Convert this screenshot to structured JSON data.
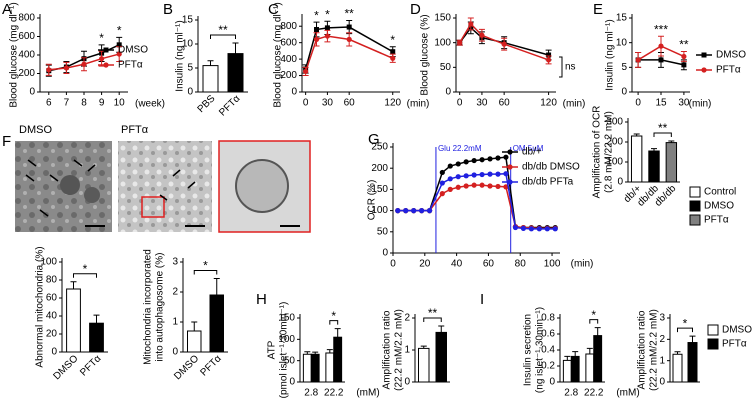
{
  "micrographs": {
    "panel": "F",
    "labels": [
      "DMSO",
      "PFTα"
    ]
  },
  "chart_data": [
    {
      "type": "line",
      "panel": "A",
      "ylabel": [
        "Blood glucose (mg dl⁻¹)"
      ],
      "xlabel": "(week)",
      "x": [
        6,
        7,
        8,
        9,
        10
      ],
      "xlim": [
        5.5,
        10.5
      ],
      "xticks": [
        6,
        7,
        8,
        9,
        10
      ],
      "ylim": [
        0,
        800
      ],
      "yticks": [
        0,
        200,
        400,
        600,
        800
      ],
      "series": [
        {
          "name": "DMSO",
          "color": "#000000",
          "marker": "square",
          "values": [
            230,
            270,
            360,
            420,
            510
          ],
          "errors": [
            60,
            60,
            80,
            90,
            80
          ]
        },
        {
          "name": "PFTα",
          "color": "#d42020",
          "marker": "circle",
          "values": [
            240,
            260,
            300,
            360,
            410
          ],
          "errors": [
            60,
            60,
            70,
            80,
            80
          ]
        }
      ],
      "significance": [
        null,
        null,
        null,
        "*",
        "*"
      ],
      "legend": true
    },
    {
      "type": "bar",
      "panel": "B",
      "ylabel": [
        "Insulin (ng ml⁻¹)"
      ],
      "categories": [
        "PBS",
        "PFTα"
      ],
      "values": [
        5.5,
        8
      ],
      "errors": [
        1,
        2.2
      ],
      "colors": [
        "#ffffff",
        "#000000"
      ],
      "ylim": [
        0,
        15
      ],
      "yticks": [
        0,
        5,
        10,
        15
      ],
      "significance": "**",
      "rotate_labels": true
    },
    {
      "type": "line",
      "panel": "C",
      "ylabel": [
        "Blood glucose (mg dl⁻¹)"
      ],
      "xlabel": "(min)",
      "x": [
        0,
        15,
        30,
        60,
        120
      ],
      "xlim": [
        -5,
        130
      ],
      "xticks": [
        0,
        30,
        60,
        120
      ],
      "ylim": [
        0,
        900
      ],
      "yticks": [
        0,
        200,
        400,
        600,
        800
      ],
      "series": [
        {
          "color": "#000000",
          "marker": "square",
          "values": [
            280,
            760,
            780,
            790,
            490
          ],
          "errors": [
            50,
            90,
            80,
            80,
            60
          ]
        },
        {
          "color": "#d42020",
          "marker": "circle",
          "values": [
            250,
            640,
            680,
            640,
            410
          ],
          "errors": [
            50,
            80,
            70,
            80,
            50
          ]
        }
      ],
      "significance": [
        null,
        "*",
        "*",
        "**",
        "*"
      ]
    },
    {
      "type": "line",
      "panel": "D",
      "ylabel": [
        "Blood glucose (%)"
      ],
      "xlabel": "(min)",
      "x": [
        0,
        15,
        30,
        60,
        120
      ],
      "xlim": [
        -5,
        130
      ],
      "xticks": [
        0,
        30,
        60,
        120
      ],
      "ylim": [
        0,
        150
      ],
      "yticks": [
        0,
        50,
        100,
        150
      ],
      "series": [
        {
          "color": "#000000",
          "marker": "square",
          "values": [
            100,
            130,
            110,
            100,
            75
          ],
          "errors": [
            5,
            12,
            12,
            12,
            10
          ]
        },
        {
          "color": "#d42020",
          "marker": "circle",
          "values": [
            100,
            138,
            115,
            97,
            65
          ],
          "errors": [
            5,
            12,
            12,
            12,
            8
          ]
        }
      ],
      "annotation": "ns"
    },
    {
      "type": "line",
      "panel": "E",
      "ylabel": [
        "Insulin (ng ml⁻¹)"
      ],
      "xlabel": "(min)",
      "x": [
        0,
        15,
        30
      ],
      "xlim": [
        -4,
        34
      ],
      "xticks": [
        0,
        15,
        30
      ],
      "ylim": [
        0,
        15
      ],
      "yticks": [
        0,
        5,
        10,
        15
      ],
      "series": [
        {
          "name": "DMSO",
          "color": "#000000",
          "marker": "square",
          "values": [
            6.5,
            6.5,
            5.5
          ],
          "errors": [
            1.5,
            1.5,
            1
          ]
        },
        {
          "name": "PFTα",
          "color": "#d42020",
          "marker": "circle",
          "values": [
            6.5,
            9.3,
            7.2
          ],
          "errors": [
            1.5,
            2,
            1
          ]
        }
      ],
      "significance": [
        null,
        "***",
        "**"
      ],
      "legend": true
    },
    {
      "type": "bar",
      "ylabel": [
        "Abnormal mitochondria (%)"
      ],
      "categories": [
        "DMSO",
        "PFTα"
      ],
      "values": [
        70,
        32
      ],
      "errors": [
        8,
        9
      ],
      "colors": [
        "#ffffff",
        "#000000"
      ],
      "ylim": [
        0,
        100
      ],
      "yticks": [
        0,
        20,
        40,
        60,
        80,
        100
      ],
      "significance": "*",
      "rotate_labels": true
    },
    {
      "type": "bar",
      "ylabel": [
        "Mitochondria incorporated",
        "into autophagosome (%)"
      ],
      "categories": [
        "DMSO",
        "PFTα"
      ],
      "values": [
        0.7,
        1.9
      ],
      "errors": [
        0.3,
        0.55
      ],
      "colors": [
        "#ffffff",
        "#000000"
      ],
      "ylim": [
        0,
        3
      ],
      "yticks": [
        0,
        1,
        2,
        3
      ],
      "significance": "*",
      "rotate_labels": true
    },
    {
      "type": "line",
      "panel": "G",
      "ylabel": [
        "OCR (%)"
      ],
      "xlabel": "(min)",
      "x": [
        3,
        8,
        13,
        18,
        23,
        31,
        36,
        41,
        46,
        51,
        56,
        61,
        66,
        71,
        77,
        82,
        87,
        92,
        97,
        102
      ],
      "xlim": [
        0,
        105
      ],
      "xticks": [
        0,
        20,
        40,
        60,
        80,
        100
      ],
      "ylim": [
        0,
        250
      ],
      "yticks": [
        0,
        50,
        100,
        150,
        200,
        250
      ],
      "series": [
        {
          "name": "db/+",
          "color": "#000000",
          "marker": "circle",
          "values": [
            100,
            100,
            100,
            100,
            100,
            190,
            205,
            210,
            215,
            218,
            220,
            222,
            224,
            226,
            62,
            60,
            60,
            60,
            60,
            60
          ]
        },
        {
          "name": "db/db DMSO",
          "color": "#d42020",
          "marker": "circle",
          "values": [
            100,
            100,
            100,
            100,
            100,
            140,
            150,
            155,
            158,
            160,
            160,
            158,
            157,
            156,
            62,
            60,
            59,
            58,
            58,
            58
          ]
        },
        {
          "name": "db/db PFTa",
          "color": "#2020e0",
          "marker": "circle",
          "values": [
            100,
            100,
            100,
            100,
            100,
            165,
            175,
            180,
            182,
            184,
            185,
            186,
            186,
            187,
            60,
            58,
            57,
            57,
            57,
            57
          ]
        }
      ],
      "events": [
        {
          "x": 27,
          "label": "Glu 22.2mM"
        },
        {
          "x": 74,
          "label": "OM 5uM"
        }
      ],
      "event_color": "#2020e0",
      "legend": true
    },
    {
      "type": "bar",
      "ylabel": [
        "Amplification of OCR",
        "(2.8 mM/22.2 mM)"
      ],
      "categories": [
        "db/+",
        "db/db",
        "db/db"
      ],
      "values": [
        230,
        155,
        197
      ],
      "errors": [
        10,
        12,
        8
      ],
      "colors": [
        "#ffffff",
        "#000000",
        "#808080"
      ],
      "ylim": [
        0,
        300
      ],
      "yticks": [
        0,
        100,
        200,
        300
      ],
      "significance": "**",
      "rotate_labels": true,
      "legend": [
        {
          "name": "Control",
          "color": "#ffffff"
        },
        {
          "name": "DMSO",
          "color": "#000000"
        },
        {
          "name": "PFTα",
          "color": "#808080"
        }
      ]
    },
    {
      "type": "bar",
      "panel": "H",
      "ylabel": [
        "ATP",
        "(pmol islet⁻¹·30min⁻¹)"
      ],
      "xlabel": "(mM)",
      "categories": [
        "2.8",
        "22.2"
      ],
      "ylim": [
        0,
        150
      ],
      "yticks": [
        0,
        50,
        100,
        150
      ],
      "series": [
        {
          "color": "#ffffff",
          "values": [
            65,
            68
          ],
          "errors": [
            6,
            8
          ]
        },
        {
          "color": "#000000",
          "values": [
            65,
            105
          ],
          "errors": [
            5,
            20
          ]
        }
      ],
      "significance": "*"
    },
    {
      "type": "bar",
      "ylabel": [
        "Amplification ratio",
        "(22.2 mM/2.2 mM)"
      ],
      "categories": [
        null,
        null
      ],
      "values": [
        1.05,
        1.55
      ],
      "errors": [
        0.07,
        0.2
      ],
      "colors": [
        "#ffffff",
        "#000000"
      ],
      "ylim": [
        0,
        2
      ],
      "yticks": [
        0,
        1,
        2
      ],
      "significance": "**"
    },
    {
      "type": "bar",
      "panel": "I",
      "ylabel": [
        "Insulin secretion",
        "(ng islet⁻¹·30min⁻¹)"
      ],
      "xlabel": "(mM)",
      "categories": [
        "2.8",
        "22.2"
      ],
      "ylim": [
        0,
        0.8
      ],
      "yticks": [
        0,
        0.2,
        0.4,
        0.6,
        0.8
      ],
      "series": [
        {
          "color": "#ffffff",
          "values": [
            0.27,
            0.35
          ],
          "errors": [
            0.05,
            0.07
          ]
        },
        {
          "color": "#000000",
          "values": [
            0.32,
            0.58
          ],
          "errors": [
            0.06,
            0.1
          ]
        }
      ],
      "significance": "*"
    },
    {
      "type": "bar",
      "ylabel": [
        "Amplification ratio",
        "(22.2 mM/2.2 mM)"
      ],
      "categories": [
        null,
        null
      ],
      "values": [
        1.3,
        1.85
      ],
      "errors": [
        0.12,
        0.3
      ],
      "colors": [
        "#ffffff",
        "#000000"
      ],
      "ylim": [
        0,
        3
      ],
      "yticks": [
        0,
        1,
        2,
        3
      ],
      "significance": "*",
      "legend": [
        {
          "name": "DMSO",
          "color": "#ffffff"
        },
        {
          "name": "PFTα",
          "color": "#000000"
        }
      ]
    }
  ]
}
